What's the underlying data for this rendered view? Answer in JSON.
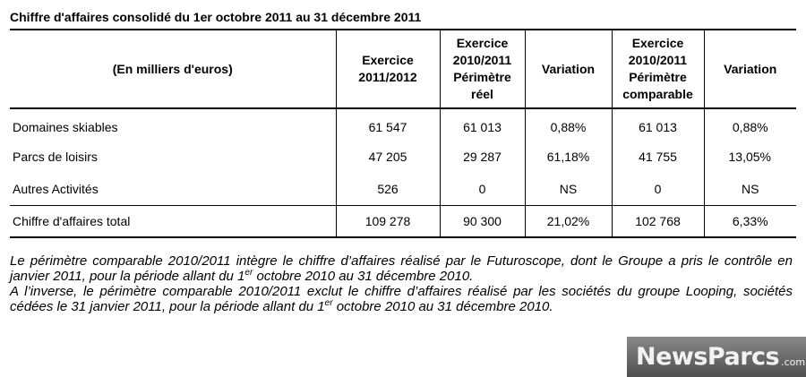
{
  "title": "Chiffre d'affaires consolidé du 1er octobre 2011 au 31 décembre 2011",
  "table": {
    "headers": {
      "label": "(En milliers d'euros)",
      "ex_2011_line1": "Exercice",
      "ex_2011_line2": "2011/2012",
      "ex_2010_reel_line1": "Exercice",
      "ex_2010_reel_line2": "2010/2011",
      "ex_2010_reel_line3": "Périmètre",
      "ex_2010_reel_line4": "réel",
      "variation_1": "Variation",
      "ex_2010_comp_line1": "Exercice",
      "ex_2010_comp_line2": "2010/2011",
      "ex_2010_comp_line3": "Périmètre",
      "ex_2010_comp_line4": "comparable",
      "variation_2": "Variation"
    },
    "rows": [
      {
        "label": "Domaines skiables",
        "ex2011": "61 547",
        "ex2010_reel": "61 013",
        "var1": "0,88%",
        "ex2010_comp": "61 013",
        "var2": "0,88%"
      },
      {
        "label": "Parcs de loisirs",
        "ex2011": "47 205",
        "ex2010_reel": "29 287",
        "var1": "61,18%",
        "ex2010_comp": "41 755",
        "var2": "13,05%"
      },
      {
        "label": "Autres Activités",
        "ex2011": "526",
        "ex2010_reel": "0",
        "var1": "NS",
        "ex2010_comp": "0",
        "var2": "NS"
      },
      {
        "label": "Chiffre d'affaires total",
        "ex2011": "109 278",
        "ex2010_reel": "90 300",
        "var1": "21,02%",
        "ex2010_comp": "102 768",
        "var2": "6,33%"
      }
    ]
  },
  "notes": {
    "p1_before": "Le périmètre comparable 2010/2011 intègre le chiffre d’affaires réalisé par le Futuroscope, dont le Groupe a pris le contrôle en janvier 2011, pour la période allant du 1",
    "p1_sup": "er",
    "p1_after": " octobre 2010 au 31 décembre 2010.",
    "p2_before": "A l’inverse, le périmètre comparable 2010/2011 exclut le chiffre d’affaires réalisé par les sociétés du groupe Looping, sociétés cédées le 31 janvier 2011, pour la période allant du 1",
    "p2_sup": "er",
    "p2_after": " octobre 2010 au 31 décembre 2010."
  },
  "watermark": {
    "brand": "NewsParcs",
    "suffix": ".com"
  }
}
